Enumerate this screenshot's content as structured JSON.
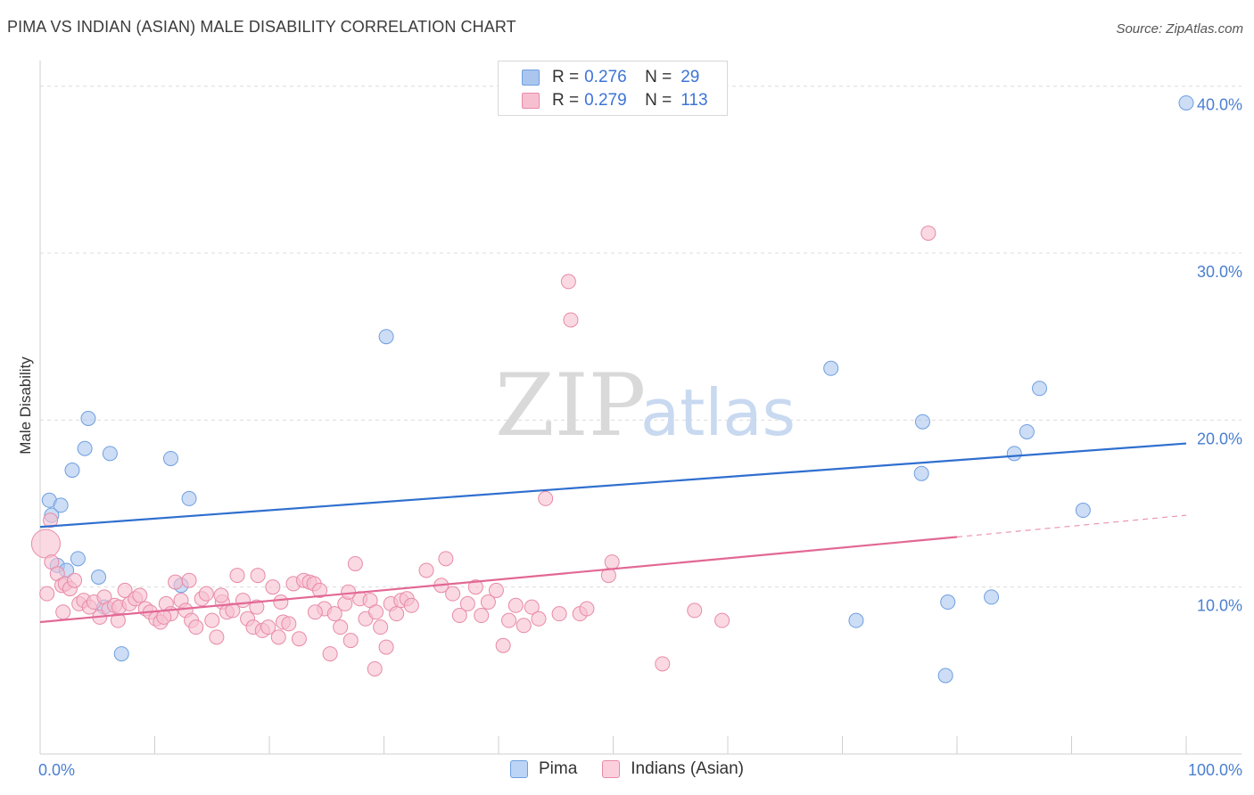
{
  "title": "PIMA VS INDIAN (ASIAN) MALE DISABILITY CORRELATION CHART",
  "source": "Source: ZipAtlas.com",
  "watermark": {
    "zip": "ZIP",
    "atlas": "atlas"
  },
  "legend": {
    "rows": [
      {
        "r_label": "R =",
        "r_value": "0.276",
        "n_label": "N =",
        "n_value": "29",
        "color": "#aac6ee",
        "border": "#6f9fe0"
      },
      {
        "r_label": "R =",
        "r_value": "0.279",
        "n_label": "N =",
        "n_value": "113",
        "color": "#f7c0d0",
        "border": "#e88aa7"
      }
    ]
  },
  "bottom_legend": [
    {
      "label": "Pima",
      "color": "#bcd4f5",
      "border": "#6f9fe0"
    },
    {
      "label": "Indians (Asian)",
      "color": "#fbd0dc",
      "border": "#e88aa7"
    }
  ],
  "chart_data": {
    "type": "scatter",
    "xlabel": "",
    "ylabel": "Male Disability",
    "xlim": [
      0,
      100
    ],
    "ylim": [
      0,
      41
    ],
    "x_tick_labels": [
      "0.0%",
      "100.0%"
    ],
    "y_ticks": [
      10,
      20,
      30,
      40
    ],
    "y_tick_labels": [
      "10.0%",
      "20.0%",
      "30.0%",
      "40.0%"
    ],
    "grid": "horizontal dashed",
    "legend_position": "top-center",
    "series": [
      {
        "name": "Pima",
        "color": "#aac6ee",
        "stroke": "#6f9fe0",
        "trend": {
          "x": [
            0,
            100
          ],
          "y": [
            13.6,
            18.6
          ],
          "color": "#2f6fcf"
        },
        "points": [
          [
            1.0,
            14.3
          ],
          [
            0.8,
            15.2
          ],
          [
            1.8,
            14.9
          ],
          [
            1.5,
            11.3
          ],
          [
            2.3,
            11.0
          ],
          [
            3.3,
            11.7
          ],
          [
            2.8,
            17.0
          ],
          [
            3.9,
            18.3
          ],
          [
            4.2,
            20.1
          ],
          [
            6.1,
            18.0
          ],
          [
            5.1,
            10.6
          ],
          [
            5.6,
            8.8
          ],
          [
            7.1,
            6.0
          ],
          [
            11.4,
            17.7
          ],
          [
            12.3,
            10.1
          ],
          [
            13.0,
            15.3
          ],
          [
            30.2,
            25.0
          ],
          [
            69.0,
            23.1
          ],
          [
            71.2,
            8.0
          ],
          [
            76.9,
            16.8
          ],
          [
            77.0,
            19.9
          ],
          [
            79.2,
            9.1
          ],
          [
            79.0,
            4.7
          ],
          [
            83.0,
            9.4
          ],
          [
            85.0,
            18.0
          ],
          [
            86.1,
            19.3
          ],
          [
            87.2,
            21.9
          ],
          [
            91.0,
            14.6
          ],
          [
            100.0,
            39.0
          ]
        ]
      },
      {
        "name": "Indians (Asian)",
        "color": "#f7c0d0",
        "stroke": "#e88aa7",
        "trend": {
          "x": [
            0,
            80
          ],
          "y": [
            7.9,
            13.0
          ],
          "color": "#e26894",
          "dashed_extension": {
            "x": [
              80,
              100
            ],
            "y": [
              13.0,
              14.3
            ]
          }
        },
        "points": [
          [
            0.5,
            12.6
          ],
          [
            0.9,
            14.0
          ],
          [
            1.0,
            11.5
          ],
          [
            1.5,
            10.8
          ],
          [
            1.9,
            10.1
          ],
          [
            2.2,
            10.2
          ],
          [
            2.6,
            9.9
          ],
          [
            3.0,
            10.4
          ],
          [
            3.4,
            9.0
          ],
          [
            3.8,
            9.2
          ],
          [
            4.3,
            8.8
          ],
          [
            4.7,
            9.1
          ],
          [
            5.2,
            8.2
          ],
          [
            5.6,
            9.4
          ],
          [
            6.0,
            8.7
          ],
          [
            6.5,
            8.9
          ],
          [
            6.9,
            8.8
          ],
          [
            7.4,
            9.8
          ],
          [
            7.8,
            9.0
          ],
          [
            8.3,
            9.3
          ],
          [
            8.7,
            9.5
          ],
          [
            9.2,
            8.7
          ],
          [
            9.6,
            8.5
          ],
          [
            10.1,
            8.1
          ],
          [
            10.5,
            7.9
          ],
          [
            11.0,
            9.0
          ],
          [
            11.4,
            8.4
          ],
          [
            11.8,
            10.3
          ],
          [
            12.3,
            9.2
          ],
          [
            12.7,
            8.6
          ],
          [
            13.2,
            8.0
          ],
          [
            13.6,
            7.6
          ],
          [
            14.1,
            9.3
          ],
          [
            14.5,
            9.6
          ],
          [
            15.0,
            8.0
          ],
          [
            15.4,
            7.0
          ],
          [
            15.9,
            9.1
          ],
          [
            16.3,
            8.5
          ],
          [
            16.8,
            8.6
          ],
          [
            17.2,
            10.7
          ],
          [
            17.7,
            9.2
          ],
          [
            18.1,
            8.1
          ],
          [
            18.6,
            7.6
          ],
          [
            19.0,
            10.7
          ],
          [
            19.4,
            7.4
          ],
          [
            19.9,
            7.6
          ],
          [
            20.3,
            10.0
          ],
          [
            20.8,
            7.0
          ],
          [
            21.2,
            7.9
          ],
          [
            21.7,
            7.8
          ],
          [
            22.1,
            10.2
          ],
          [
            22.6,
            6.9
          ],
          [
            23.0,
            10.4
          ],
          [
            23.5,
            10.3
          ],
          [
            23.9,
            10.2
          ],
          [
            24.4,
            9.8
          ],
          [
            24.8,
            8.7
          ],
          [
            25.3,
            6.0
          ],
          [
            25.7,
            8.4
          ],
          [
            26.2,
            7.6
          ],
          [
            26.6,
            9.0
          ],
          [
            27.1,
            6.8
          ],
          [
            27.5,
            11.4
          ],
          [
            27.9,
            9.3
          ],
          [
            28.4,
            8.1
          ],
          [
            28.8,
            9.2
          ],
          [
            29.3,
            8.5
          ],
          [
            29.7,
            7.6
          ],
          [
            30.2,
            6.4
          ],
          [
            30.6,
            9.0
          ],
          [
            31.1,
            8.4
          ],
          [
            31.5,
            9.2
          ],
          [
            32.0,
            9.3
          ],
          [
            32.4,
            8.9
          ],
          [
            29.2,
            5.1
          ],
          [
            33.7,
            11.0
          ],
          [
            35.0,
            10.1
          ],
          [
            35.4,
            11.7
          ],
          [
            36.0,
            9.6
          ],
          [
            36.6,
            8.3
          ],
          [
            37.3,
            9.0
          ],
          [
            38.0,
            10.0
          ],
          [
            38.5,
            8.3
          ],
          [
            39.1,
            9.1
          ],
          [
            39.8,
            9.8
          ],
          [
            40.4,
            6.5
          ],
          [
            40.9,
            8.0
          ],
          [
            41.5,
            8.9
          ],
          [
            42.2,
            7.7
          ],
          [
            42.9,
            8.8
          ],
          [
            43.5,
            8.1
          ],
          [
            44.1,
            15.3
          ],
          [
            45.3,
            8.4
          ],
          [
            46.1,
            28.3
          ],
          [
            46.3,
            26.0
          ],
          [
            47.1,
            8.4
          ],
          [
            47.7,
            8.7
          ],
          [
            49.6,
            10.7
          ],
          [
            49.9,
            11.5
          ],
          [
            54.3,
            5.4
          ],
          [
            57.1,
            8.6
          ],
          [
            59.5,
            8.0
          ],
          [
            77.5,
            31.2
          ],
          [
            0.6,
            9.6
          ],
          [
            2.0,
            8.5
          ],
          [
            6.8,
            8.0
          ],
          [
            10.8,
            8.2
          ],
          [
            13.0,
            10.4
          ],
          [
            15.8,
            9.5
          ],
          [
            18.9,
            8.8
          ],
          [
            21.0,
            9.1
          ],
          [
            24.0,
            8.5
          ],
          [
            26.9,
            9.7
          ]
        ]
      }
    ]
  }
}
